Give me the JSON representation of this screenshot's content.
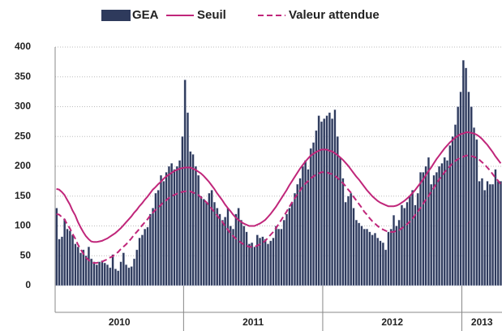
{
  "chart_data": {
    "type": "bar",
    "ylim": [
      0,
      400
    ],
    "yticks": [
      0,
      50,
      100,
      150,
      200,
      250,
      300,
      350,
      400
    ],
    "grid": true,
    "legend": "top",
    "groups": [
      {
        "label": "2010",
        "size": 48
      },
      {
        "label": "2011",
        "size": 52
      },
      {
        "label": "2012",
        "size": 52
      },
      {
        "label": "2013",
        "size": 15
      }
    ],
    "categories": [
      null,
      null,
      null,
      null,
      null,
      null,
      null,
      null,
      null,
      null,
      null,
      null,
      null,
      null,
      null,
      null,
      null,
      null,
      null,
      null,
      null,
      null,
      null,
      null,
      null,
      null,
      null,
      null,
      null,
      null,
      null,
      null,
      null,
      null,
      null,
      null,
      null,
      null,
      null,
      null,
      null,
      null,
      null,
      null,
      null,
      null,
      null,
      null,
      null,
      null,
      null,
      null,
      null,
      null,
      null,
      null,
      null,
      null,
      null,
      null,
      null,
      null,
      null,
      null,
      null,
      null,
      null,
      null,
      null,
      null,
      null,
      null,
      null,
      null,
      null,
      null,
      null,
      null,
      null,
      null,
      null,
      null,
      null,
      null,
      null,
      null,
      null,
      null,
      null,
      null,
      null,
      null,
      null,
      null,
      null,
      null,
      null,
      null,
      null,
      null,
      null,
      null,
      null,
      null,
      null,
      null,
      null,
      null,
      null,
      null,
      null,
      null,
      null,
      null,
      null,
      null,
      null,
      null,
      null,
      null,
      null,
      null,
      null,
      null,
      null,
      null,
      null,
      null,
      null,
      null,
      null,
      null,
      null,
      null,
      null,
      null,
      null,
      null,
      null,
      null,
      null,
      null,
      null,
      null,
      null,
      null,
      null,
      null,
      null,
      null,
      null,
      null,
      null,
      null,
      null,
      null,
      null,
      null,
      null,
      null,
      null,
      null,
      null,
      null,
      null,
      null,
      null
    ],
    "series": [
      {
        "name": "GEA",
        "kind": "bar",
        "color": "#2e3a5c",
        "values": [
          130,
          78,
          82,
          112,
          95,
          92,
          85,
          70,
          65,
          55,
          60,
          50,
          65,
          45,
          40,
          35,
          40,
          42,
          38,
          35,
          30,
          52,
          28,
          25,
          40,
          55,
          35,
          30,
          32,
          45,
          60,
          80,
          85,
          95,
          98,
          120,
          130,
          155,
          160,
          185,
          175,
          190,
          200,
          205,
          195,
          200,
          210,
          250,
          345,
          290,
          225,
          220,
          200,
          185,
          150,
          145,
          140,
          155,
          160,
          140,
          130,
          120,
          110,
          115,
          130,
          100,
          95,
          120,
          130,
          110,
          100,
          90,
          70,
          72,
          65,
          85,
          80,
          82,
          78,
          70,
          75,
          80,
          100,
          95,
          95,
          110,
          120,
          130,
          140,
          155,
          170,
          180,
          200,
          210,
          195,
          230,
          240,
          260,
          285,
          275,
          280,
          285,
          290,
          280,
          295,
          250,
          215,
          180,
          140,
          150,
          155,
          130,
          110,
          105,
          100,
          95,
          95,
          90,
          85,
          88,
          80,
          75,
          72,
          60,
          90,
          95,
          118,
          100,
          110,
          135,
          130,
          140,
          150,
          160,
          135,
          155,
          190,
          190,
          200,
          215,
          170,
          185,
          190,
          200,
          205,
          215,
          210,
          235,
          250,
          270,
          300,
          325,
          378,
          365,
          325,
          300,
          265,
          245,
          175,
          180,
          160,
          175,
          170,
          170,
          195,
          175,
          175
        ]
      },
      {
        "name": "Seuil",
        "kind": "line",
        "color": "#c0267a",
        "values": [
          162,
          161,
          157,
          152,
          144,
          136,
          126,
          118,
          107,
          98,
          90,
          83,
          78,
          74,
          73,
          73,
          74,
          75,
          77,
          79,
          82,
          85,
          88,
          92,
          96,
          101,
          106,
          111,
          116,
          122,
          127,
          133,
          138,
          144,
          149,
          155,
          161,
          165,
          170,
          174,
          179,
          183,
          186,
          189,
          192,
          194,
          196,
          197,
          198,
          198,
          198,
          196,
          194,
          191,
          188,
          184,
          179,
          174,
          168,
          162,
          155,
          149,
          143,
          136,
          130,
          125,
          119,
          114,
          110,
          107,
          104,
          102,
          100,
          100,
          100,
          102,
          104,
          107,
          110,
          115,
          120,
          126,
          132,
          139,
          146,
          153,
          160,
          168,
          175,
          182,
          189,
          196,
          202,
          208,
          213,
          218,
          221,
          224,
          226,
          228,
          228,
          228,
          226,
          225,
          222,
          219,
          215,
          211,
          206,
          201,
          195,
          189,
          183,
          178,
          172,
          166,
          160,
          155,
          150,
          146,
          142,
          139,
          137,
          135,
          133,
          133,
          133,
          134,
          136,
          139,
          142,
          146,
          150,
          155,
          160,
          166,
          172,
          178,
          185,
          192,
          198,
          205,
          212,
          218,
          224,
          230,
          235,
          240,
          244,
          248,
          251,
          254,
          255,
          257,
          257,
          256,
          255,
          253,
          250,
          246,
          241,
          236,
          230,
          224,
          217,
          211,
          205
        ]
      },
      {
        "name": "Valeur attendue",
        "kind": "line",
        "dashed": true,
        "color": "#c0267a",
        "values": [
          120,
          119,
          115,
          111,
          103,
          96,
          87,
          79,
          69,
          61,
          54,
          47,
          43,
          39,
          38,
          38,
          39,
          40,
          42,
          44,
          47,
          49,
          53,
          56,
          61,
          65,
          69,
          74,
          79,
          85,
          90,
          95,
          101,
          106,
          111,
          117,
          122,
          127,
          131,
          135,
          140,
          143,
          147,
          150,
          152,
          154,
          156,
          157,
          158,
          158,
          158,
          156,
          154,
          152,
          148,
          144,
          140,
          135,
          129,
          124,
          118,
          112,
          107,
          100,
          94,
          88,
          83,
          79,
          75,
          72,
          69,
          67,
          65,
          65,
          65,
          67,
          69,
          72,
          75,
          80,
          85,
          90,
          96,
          103,
          110,
          117,
          124,
          132,
          139,
          146,
          153,
          159,
          166,
          171,
          175,
          180,
          183,
          186,
          188,
          190,
          190,
          190,
          188,
          187,
          184,
          181,
          176,
          172,
          167,
          161,
          156,
          149,
          143,
          137,
          131,
          124,
          119,
          113,
          108,
          104,
          100,
          96,
          94,
          92,
          90,
          90,
          90,
          92,
          93,
          96,
          99,
          103,
          107,
          112,
          118,
          124,
          130,
          137,
          144,
          150,
          157,
          164,
          171,
          178,
          184,
          190,
          195,
          200,
          205,
          209,
          212,
          215,
          216,
          218,
          218,
          217,
          216,
          214,
          211,
          207,
          203,
          198,
          193,
          187,
          181,
          176,
          170
        ]
      }
    ]
  }
}
